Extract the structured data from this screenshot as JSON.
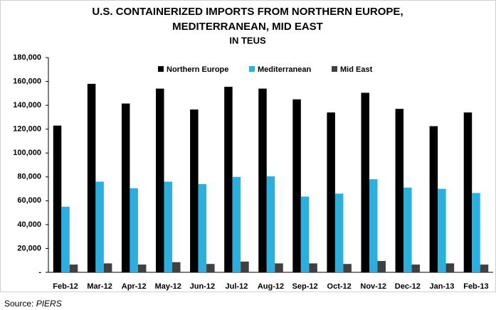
{
  "chart_data": {
    "type": "bar",
    "title": [
      "U.S. CONTAINERIZED IMPORTS FROM NORTHERN EUROPE,",
      "MEDITERRANEAN, MID EAST"
    ],
    "subtitle": "IN TEUS",
    "categories": [
      "Feb-12",
      "Mar-12",
      "Apr-12",
      "May-12",
      "Jun-12",
      "Jul-12",
      "Aug-12",
      "Sep-12",
      "Oct-12",
      "Nov-12",
      "Dec-12",
      "Jan-13",
      "Feb-13"
    ],
    "series": [
      {
        "name": "Northern Europe",
        "color": "#000000",
        "values": [
          123000,
          158000,
          141500,
          154000,
          136500,
          155500,
          154000,
          145000,
          134000,
          150500,
          137000,
          122500,
          134000
        ]
      },
      {
        "name": "Mediterranean",
        "color": "#2ab0e0",
        "values": [
          55000,
          76000,
          70500,
          76000,
          74000,
          80000,
          80500,
          63500,
          66000,
          78000,
          71000,
          70000,
          66500
        ]
      },
      {
        "name": "Mid East",
        "color": "#404040",
        "values": [
          6500,
          7500,
          6500,
          8500,
          7000,
          9000,
          7500,
          7500,
          7000,
          9500,
          6500,
          7500,
          6500
        ]
      }
    ],
    "ylim": [
      0,
      180000
    ],
    "yticks": [
      {
        "value": 0,
        "label": "-"
      },
      {
        "value": 20000,
        "label": "20,000"
      },
      {
        "value": 40000,
        "label": "40,000"
      },
      {
        "value": 60000,
        "label": "60,000"
      },
      {
        "value": 80000,
        "label": "80,000"
      },
      {
        "value": 100000,
        "label": "100,000"
      },
      {
        "value": 120000,
        "label": "120,000"
      },
      {
        "value": 140000,
        "label": "140,000"
      },
      {
        "value": 160000,
        "label": "160,000"
      },
      {
        "value": 180000,
        "label": "180,000"
      }
    ],
    "grid": false,
    "legend": "top",
    "source_label": "Source:",
    "source": "PIERS"
  }
}
